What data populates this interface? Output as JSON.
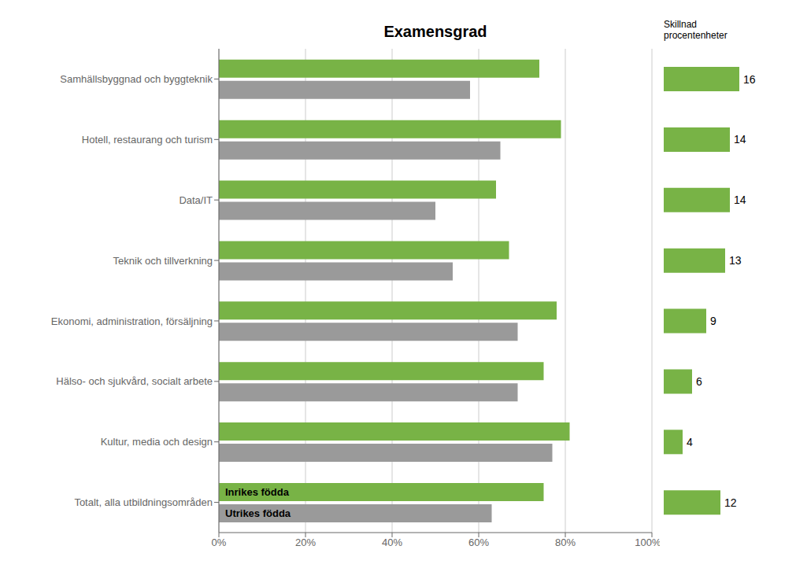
{
  "chart_data": [
    {
      "type": "bar",
      "orientation": "horizontal",
      "title": "Examensgrad",
      "categories": [
        "Samhällsbyggnad och byggteknik",
        "Hotell, restaurang och turism",
        "Data/IT",
        "Teknik och tillverkning",
        "Ekonomi, administration, försäljning",
        "Hälso- och sjukvård, socialt arbete",
        "Kultur, media och design",
        "Totalt, alla utbildningsområden"
      ],
      "series": [
        {
          "name": "Inrikes födda",
          "color": "#78b346",
          "values": [
            74,
            79,
            64,
            67,
            78,
            75,
            81,
            75
          ]
        },
        {
          "name": "Utrikes födda",
          "color": "#9a9a9a",
          "values": [
            58,
            65,
            50,
            54,
            69,
            69,
            77,
            63
          ]
        }
      ],
      "xlim": [
        0,
        100
      ],
      "xticks": [
        {
          "value": 0,
          "label": "0%"
        },
        {
          "value": 20,
          "label": "20%"
        },
        {
          "value": 40,
          "label": "40%"
        },
        {
          "value": 60,
          "label": "60%"
        },
        {
          "value": 80,
          "label": "80%"
        },
        {
          "value": 100,
          "label": "100%"
        }
      ],
      "grid": true
    },
    {
      "type": "bar",
      "orientation": "horizontal",
      "title": "Skillnad\nprocentenheter",
      "categories": [
        "Samhällsbyggnad och byggteknik",
        "Hotell, restaurang och turism",
        "Data/IT",
        "Teknik och tillverkning",
        "Ekonomi, administration, försäljning",
        "Hälso- och sjukvård, socialt arbete",
        "Kultur, media och design",
        "Totalt, alla utbildningsområden"
      ],
      "values": [
        16,
        14,
        14,
        13,
        9,
        6,
        4,
        12
      ],
      "color": "#78b346",
      "xlim": [
        0,
        20
      ],
      "data_labels": true,
      "tick_labels": false
    }
  ]
}
